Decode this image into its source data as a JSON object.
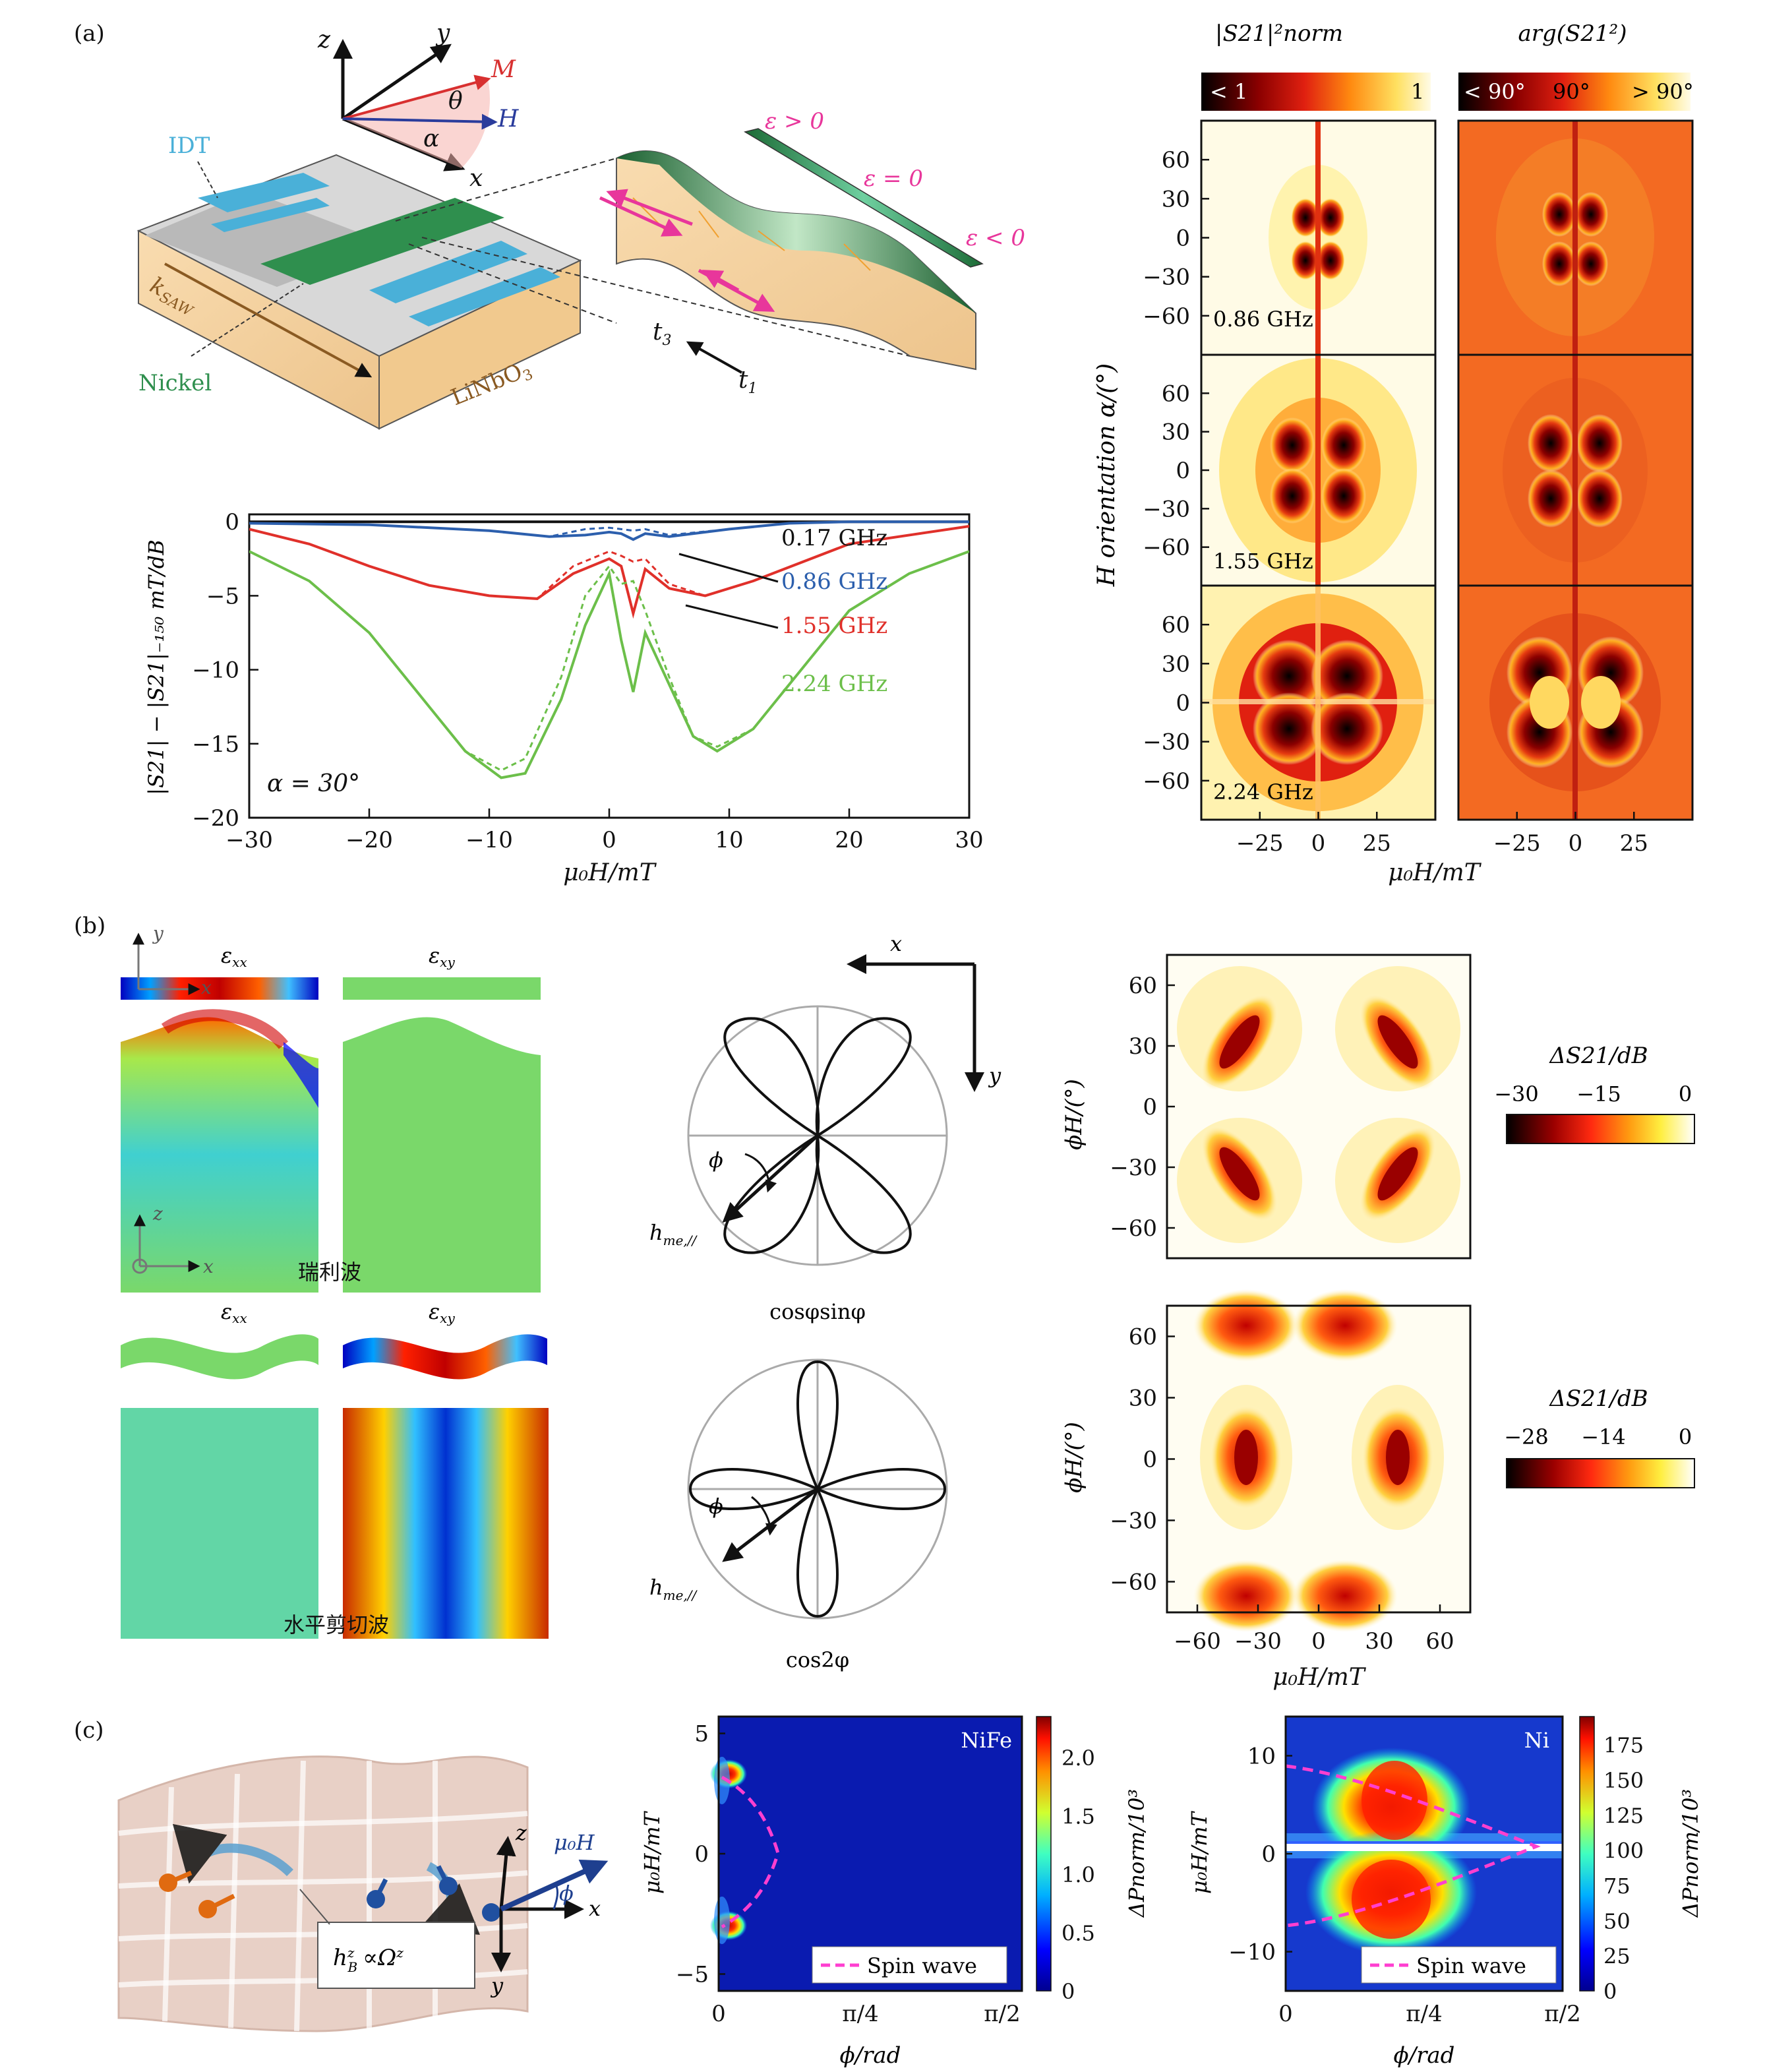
{
  "panel_labels": {
    "a": "(a)",
    "b": "(b)",
    "c": "(c)"
  },
  "colors": {
    "blue": "#2c5fad",
    "red": "#e0302a",
    "green": "#6cbf4a",
    "magenta": "#e8369b",
    "nickel": "#2f8f4e",
    "idt": "#4ab0d8",
    "substrate": "#f6d7a8"
  },
  "panel_a": {
    "schematic": {
      "axis_z": "z",
      "axis_y": "y",
      "axis_x": "x",
      "label_M": "M",
      "label_H": "H",
      "label_theta": "θ",
      "label_alpha": "α",
      "idt": "IDT",
      "ksaw": "k",
      "ksaw_sub": "SAW",
      "nickel": "Nickel",
      "substrate": "LiNbO",
      "substrate_sub": "3",
      "t3": "t",
      "t3_sub": "3",
      "t1": "t",
      "t1_sub": "1",
      "eps_pos": "ε > 0",
      "eps_zero": "ε = 0",
      "eps_neg": "ε < 0"
    },
    "line_chart_data": {
      "type": "line",
      "title": "",
      "xlabel": "μ₀H/mT",
      "ylabel": "|S21| − |S21|₋₁₅₀ mT/dB",
      "xlim": [
        -30,
        30
      ],
      "ylim": [
        -20,
        0.5
      ],
      "xticks": [
        "−30",
        "−20",
        "−10",
        "0",
        "10",
        "20",
        "30"
      ],
      "yticks": [
        "0",
        "−5",
        "−10",
        "−15",
        "−20"
      ],
      "annotation": "α = 30°",
      "series": [
        {
          "name": "0.17 GHz",
          "color": "#111111",
          "x": [
            -30,
            0,
            30
          ],
          "y_solid": [
            0,
            0,
            0
          ],
          "y_dashed": [
            0,
            0,
            0
          ]
        },
        {
          "name": "0.86 GHz",
          "color": "#2c5fad",
          "x": [
            -30,
            -20,
            -10,
            -5,
            -2,
            0,
            1,
            2,
            3,
            5,
            10,
            15,
            20,
            30
          ],
          "y_solid": [
            -0.1,
            -0.2,
            -0.6,
            -1.0,
            -0.9,
            -0.7,
            -0.8,
            -1.2,
            -0.8,
            -1.0,
            -0.5,
            -0.1,
            0,
            0
          ],
          "y_dashed": [
            -0.1,
            -0.2,
            -0.6,
            -1.0,
            -0.5,
            -0.4,
            -0.5,
            -0.6,
            -0.5,
            -0.9,
            -0.5,
            -0.1,
            0,
            0
          ]
        },
        {
          "name": "1.55 GHz",
          "color": "#e0302a",
          "x": [
            -30,
            -25,
            -20,
            -15,
            -10,
            -6,
            -3,
            0,
            1,
            2,
            3,
            5,
            8,
            12,
            20,
            30
          ],
          "y_solid": [
            -0.5,
            -1.5,
            -3.0,
            -4.3,
            -5.0,
            -5.2,
            -3.5,
            -2.5,
            -3.0,
            -6.2,
            -3.2,
            -4.5,
            -5.0,
            -4.0,
            -1.5,
            -0.3
          ],
          "y_dashed": [
            -0.5,
            -1.5,
            -3.0,
            -4.3,
            -5.0,
            -5.2,
            -3.0,
            -2.0,
            -2.3,
            -2.7,
            -2.5,
            -4.2,
            -5.0,
            -4.0,
            -1.5,
            -0.3
          ]
        },
        {
          "name": "2.24 GHz",
          "color": "#6cbf4a",
          "x": [
            -30,
            -25,
            -20,
            -15,
            -12,
            -9,
            -7,
            -4,
            -2,
            0,
            1,
            2,
            3,
            5,
            7,
            9,
            12,
            15,
            20,
            25,
            30
          ],
          "y_solid": [
            -2.0,
            -4.0,
            -7.5,
            -12.5,
            -15.5,
            -17.3,
            -17.0,
            -12.0,
            -7.0,
            -3.5,
            -8.0,
            -11.5,
            -7.5,
            -11.0,
            -14.5,
            -15.5,
            -14.0,
            -11.0,
            -6.0,
            -3.5,
            -2.0
          ],
          "y_dashed": [
            -2.0,
            -4.0,
            -7.5,
            -12.5,
            -15.5,
            -16.8,
            -16.0,
            -10.5,
            -5.0,
            -3.0,
            -4.2,
            -4.0,
            -6.0,
            -10.5,
            -14.5,
            -15.2,
            -14.0,
            -11.0,
            -6.0,
            -3.5,
            -2.0
          ]
        }
      ]
    },
    "heatmaps": {
      "title_left": "|S21|²norm",
      "title_right": "arg(S21²)",
      "cb_left": {
        "low": "< 1",
        "high": "1"
      },
      "cb_right": {
        "low": "< 90°",
        "mid": "90°",
        "high": "> 90°"
      },
      "ylabel": "H orientation α/(°)",
      "xlabel": "μ₀H/mT",
      "yticks": [
        "60",
        "30",
        "0",
        "−30",
        "−60"
      ],
      "xticks": [
        "−25",
        "0",
        "25"
      ],
      "freq_labels": [
        "0.86 GHz",
        "1.55 GHz",
        "2.24 GHz"
      ]
    }
  },
  "panel_b": {
    "rayleigh": {
      "exx": "ε",
      "exx_sub": "xx",
      "exy": "ε",
      "exy_sub": "xy",
      "name": "瑞利波",
      "axis_y": "y",
      "axis_x": "x",
      "axis_z": "z"
    },
    "shear": {
      "exx": "ε",
      "exx_sub": "xx",
      "exy": "ε",
      "exy_sub": "xy",
      "name": "水平剪切波"
    },
    "polar_top": {
      "axis_x": "x",
      "axis_y": "y",
      "phi": "ϕ",
      "h": "h",
      "h_sub": "me,//",
      "caption": "cosφsinφ"
    },
    "polar_bottom": {
      "phi": "ϕ",
      "h": "h",
      "h_sub": "me,//",
      "caption": "cos2φ"
    },
    "maps": {
      "ylabel": "ϕH/(°)",
      "xlabel": "μ₀H/mT",
      "yticks": [
        "60",
        "30",
        "0",
        "−30",
        "−60"
      ],
      "xticks": [
        "−60",
        "−30",
        "0",
        "30",
        "60"
      ],
      "cb_top": {
        "title": "ΔS21/dB",
        "ticks": [
          "−30",
          "−15",
          "0"
        ]
      },
      "cb_bottom": {
        "title": "ΔS21/dB",
        "ticks": [
          "−28",
          "−14",
          "0"
        ]
      }
    }
  },
  "panel_c": {
    "schematic": {
      "z": "z",
      "y": "y",
      "x": "x",
      "muH": "μ₀H",
      "phi": "ϕ",
      "hB": "h",
      "hB_sub": "B",
      "hB_sup": "z",
      "prop": "∝",
      "omega": "Ω",
      "omega_sup": "z"
    },
    "nife": {
      "tag": "NiFe",
      "ylabel": "μ₀H/mT",
      "xlabel": "ϕ/rad",
      "yticks": [
        "5",
        "0",
        "−5"
      ],
      "xticks": [
        "0",
        "π/4",
        "π/2"
      ],
      "legend": "Spin wave",
      "cb_label": "ΔPnorm/10³",
      "cb_ticks": [
        "2.0",
        "1.5",
        "1.0",
        "0.5",
        "0"
      ]
    },
    "ni": {
      "tag": "Ni",
      "ylabel": "μ₀H/mT",
      "xlabel": "ϕ/rad",
      "yticks": [
        "10",
        "0",
        "−10"
      ],
      "xticks": [
        "0",
        "π/4",
        "π/2"
      ],
      "legend": "Spin wave",
      "cb_label": "ΔPnorm/10³",
      "cb_ticks": [
        "175",
        "150",
        "125",
        "100",
        "75",
        "50",
        "25",
        "0"
      ]
    }
  }
}
